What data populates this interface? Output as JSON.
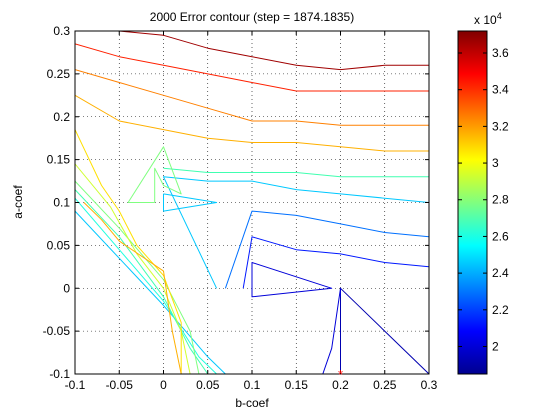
{
  "chart_data": {
    "type": "contour",
    "title": "2000 Error contour (step = 1874.1835)",
    "xlabel": "b-coef",
    "ylabel": "a-coef",
    "xlim": [
      -0.1,
      0.3
    ],
    "ylim": [
      -0.1,
      0.3
    ],
    "x_ticks": [
      "-0.1",
      "-0.05",
      "0",
      "0.05",
      "0.1",
      "0.15",
      "0.2",
      "0.25",
      "0.3"
    ],
    "y_ticks": [
      "-0.1",
      "-0.05",
      "0",
      "0.05",
      "0.1",
      "0.15",
      "0.2",
      "0.25",
      "0.3"
    ],
    "grid": true,
    "colormap": "jet",
    "colorbar": {
      "min": 1.85,
      "max": 3.72,
      "ticks": [
        "2",
        "2.2",
        "2.4",
        "2.6",
        "2.8",
        "3",
        "3.2",
        "3.4",
        "3.6"
      ],
      "multiplier_base": "x 10",
      "multiplier_exponent": "4"
    },
    "marker": {
      "x": 0.2,
      "y": -0.1,
      "symbol": "*",
      "color": "#ff0000"
    },
    "contours": [
      {
        "level": 1.95,
        "color": "#0000b0",
        "points": [
          [
            0.2,
            -0.1
          ],
          [
            0.2,
            0.0
          ],
          [
            0.21,
            -0.01
          ],
          [
            0.25,
            -0.05
          ],
          [
            0.3,
            -0.1
          ]
        ]
      },
      {
        "level": 2.05,
        "color": "#0000d8",
        "points": [
          [
            0.1,
            0.0
          ],
          [
            0.1,
            0.03
          ],
          [
            0.19,
            0.0
          ],
          [
            0.1,
            -0.01
          ],
          [
            0.1,
            0.0
          ]
        ]
      },
      {
        "level": 2.05,
        "color": "#0000d8",
        "points": [
          [
            0.2,
            -0.01
          ],
          [
            0.2,
            0.0
          ],
          [
            0.19,
            -0.07
          ],
          [
            0.18,
            -0.1
          ]
        ]
      },
      {
        "level": 2.15,
        "color": "#0018ff",
        "points": [
          [
            0.09,
            0.0
          ],
          [
            0.1,
            0.06
          ],
          [
            0.15,
            0.045
          ],
          [
            0.2,
            0.04
          ],
          [
            0.25,
            0.03
          ],
          [
            0.3,
            0.025
          ]
        ]
      },
      {
        "level": 2.25,
        "color": "#0070ff",
        "points": [
          [
            0.07,
            0.0
          ],
          [
            0.1,
            0.09
          ],
          [
            0.15,
            0.085
          ],
          [
            0.2,
            0.075
          ],
          [
            0.25,
            0.065
          ],
          [
            0.3,
            0.06
          ]
        ]
      },
      {
        "level": 2.35,
        "color": "#00c8ff",
        "points": [
          [
            0.06,
            0.0
          ],
          [
            0.0,
            0.13
          ],
          [
            0.05,
            0.125
          ],
          [
            0.1,
            0.125
          ],
          [
            0.15,
            0.115
          ],
          [
            0.2,
            0.11
          ],
          [
            0.25,
            0.105
          ],
          [
            0.3,
            0.1
          ]
        ]
      },
      {
        "level": 2.35,
        "color": "#00c8ff",
        "points": [
          [
            0.0,
            0.11
          ],
          [
            0.06,
            0.1
          ],
          [
            0.0,
            0.09
          ],
          [
            0.0,
            0.11
          ]
        ]
      },
      {
        "level": 2.35,
        "color": "#00c8ff",
        "points": [
          [
            -0.1,
            0.09
          ],
          [
            0.0,
            -0.02
          ],
          [
            0.05,
            -0.08
          ],
          [
            0.07,
            -0.1
          ]
        ]
      },
      {
        "level": 2.45,
        "color": "#20ffe0",
        "points": [
          [
            -0.1,
            0.105
          ],
          [
            -0.05,
            0.045
          ],
          [
            0.0,
            -0.015
          ],
          [
            0.04,
            -0.08
          ],
          [
            0.06,
            -0.1
          ]
        ]
      },
      {
        "level": 2.55,
        "color": "#40ffb0",
        "points": [
          [
            0.0,
            0.14
          ],
          [
            0.05,
            0.135
          ],
          [
            0.1,
            0.135
          ],
          [
            0.15,
            0.135
          ],
          [
            0.2,
            0.13
          ],
          [
            0.25,
            0.13
          ],
          [
            0.3,
            0.13
          ]
        ]
      },
      {
        "level": 2.55,
        "color": "#40ffb0",
        "points": [
          [
            -0.1,
            0.115
          ],
          [
            -0.05,
            0.06
          ],
          [
            0.0,
            -0.01
          ],
          [
            0.03,
            -0.07
          ],
          [
            0.05,
            -0.1
          ]
        ]
      },
      {
        "level": 2.7,
        "color": "#80ff80",
        "points": [
          [
            -0.01,
            0.1
          ],
          [
            -0.01,
            0.14
          ],
          [
            0.0,
            0.12
          ],
          [
            0.02,
            0.11
          ],
          [
            0.0,
            0.165
          ],
          [
            -0.04,
            0.1
          ],
          [
            -0.01,
            0.1
          ]
        ]
      },
      {
        "level": 2.7,
        "color": "#80ff80",
        "points": [
          [
            -0.1,
            0.125
          ],
          [
            -0.05,
            0.07
          ],
          [
            0.0,
            0.01
          ],
          [
            0.03,
            -0.05
          ],
          [
            0.04,
            -0.1
          ]
        ]
      },
      {
        "level": 2.85,
        "color": "#d0ff30",
        "points": [
          [
            -0.1,
            0.145
          ],
          [
            -0.06,
            0.095
          ],
          [
            -0.03,
            0.04
          ],
          [
            0.0,
            0.0
          ],
          [
            0.02,
            -0.05
          ],
          [
            0.03,
            -0.1
          ]
        ]
      },
      {
        "level": 3.0,
        "color": "#ffe000",
        "points": [
          [
            -0.1,
            0.185
          ],
          [
            -0.07,
            0.12
          ],
          [
            -0.05,
            0.09
          ],
          [
            -0.03,
            0.05
          ],
          [
            0.0,
            0.015
          ],
          [
            0.02,
            -0.04
          ],
          [
            0.02,
            -0.1
          ]
        ]
      },
      {
        "level": 3.1,
        "color": "#ffb000",
        "points": [
          [
            -0.1,
            0.225
          ],
          [
            -0.05,
            0.195
          ],
          [
            0.0,
            0.185
          ],
          [
            0.05,
            0.175
          ],
          [
            0.1,
            0.17
          ],
          [
            0.15,
            0.17
          ],
          [
            0.2,
            0.165
          ],
          [
            0.25,
            0.16
          ],
          [
            0.3,
            0.16
          ]
        ]
      },
      {
        "level": 3.1,
        "color": "#ffb000",
        "points": [
          [
            -0.09,
            0.1
          ],
          [
            -0.07,
            0.08
          ],
          [
            -0.05,
            0.055
          ],
          [
            0.0,
            0.02
          ],
          [
            0.01,
            -0.05
          ],
          [
            0.02,
            -0.1
          ]
        ]
      },
      {
        "level": 3.25,
        "color": "#ff8000",
        "points": [
          [
            -0.1,
            0.255
          ],
          [
            -0.05,
            0.24
          ],
          [
            0.0,
            0.225
          ],
          [
            0.05,
            0.21
          ],
          [
            0.1,
            0.195
          ],
          [
            0.15,
            0.195
          ],
          [
            0.2,
            0.19
          ],
          [
            0.25,
            0.19
          ],
          [
            0.3,
            0.19
          ]
        ]
      },
      {
        "level": 3.45,
        "color": "#ff2000",
        "points": [
          [
            -0.1,
            0.285
          ],
          [
            -0.05,
            0.27
          ],
          [
            0.0,
            0.26
          ],
          [
            0.05,
            0.25
          ],
          [
            0.1,
            0.24
          ],
          [
            0.15,
            0.23
          ],
          [
            0.2,
            0.23
          ],
          [
            0.25,
            0.23
          ],
          [
            0.3,
            0.23
          ]
        ]
      },
      {
        "level": 3.65,
        "color": "#a00000",
        "points": [
          [
            -0.05,
            0.3
          ],
          [
            0.0,
            0.295
          ],
          [
            0.05,
            0.28
          ],
          [
            0.1,
            0.27
          ],
          [
            0.15,
            0.26
          ],
          [
            0.2,
            0.255
          ],
          [
            0.25,
            0.26
          ],
          [
            0.3,
            0.26
          ]
        ]
      }
    ]
  }
}
